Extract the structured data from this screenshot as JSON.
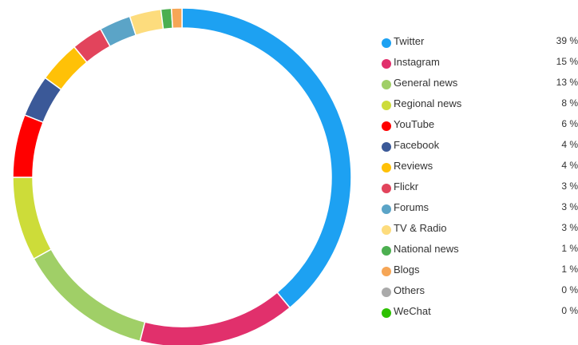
{
  "chart_data": {
    "type": "pie",
    "variant": "donut",
    "title": "",
    "legend_placement": "right",
    "unit": "%",
    "series": [
      {
        "label": "Twitter",
        "value": 39,
        "color": "#1da1f2"
      },
      {
        "label": "Instagram",
        "value": 15,
        "color": "#e1306c"
      },
      {
        "label": "General news",
        "value": 13,
        "color": "#a0cf67"
      },
      {
        "label": "Regional news",
        "value": 8,
        "color": "#cddc39"
      },
      {
        "label": "YouTube",
        "value": 6,
        "color": "#ff0000"
      },
      {
        "label": "Facebook",
        "value": 4,
        "color": "#3b5998"
      },
      {
        "label": "Reviews",
        "value": 4,
        "color": "#ffc107"
      },
      {
        "label": "Flickr",
        "value": 3,
        "color": "#e2445c"
      },
      {
        "label": "Forums",
        "value": 3,
        "color": "#5ba4c7"
      },
      {
        "label": "TV & Radio",
        "value": 3,
        "color": "#fddc7d"
      },
      {
        "label": "National news",
        "value": 1,
        "color": "#4caf50"
      },
      {
        "label": "Blogs",
        "value": 1,
        "color": "#f6a656"
      },
      {
        "label": "Others",
        "value": 0,
        "color": "#aaaaaa"
      },
      {
        "label": "WeChat",
        "value": 0,
        "color": "#2dc100"
      }
    ],
    "value_labels": [
      "39 %",
      "15 %",
      "13 %",
      "8 %",
      "6 %",
      "4 %",
      "4 %",
      "3 %",
      "3 %",
      "3 %",
      "1 %",
      "1 %",
      "0 %",
      "0 %"
    ]
  }
}
